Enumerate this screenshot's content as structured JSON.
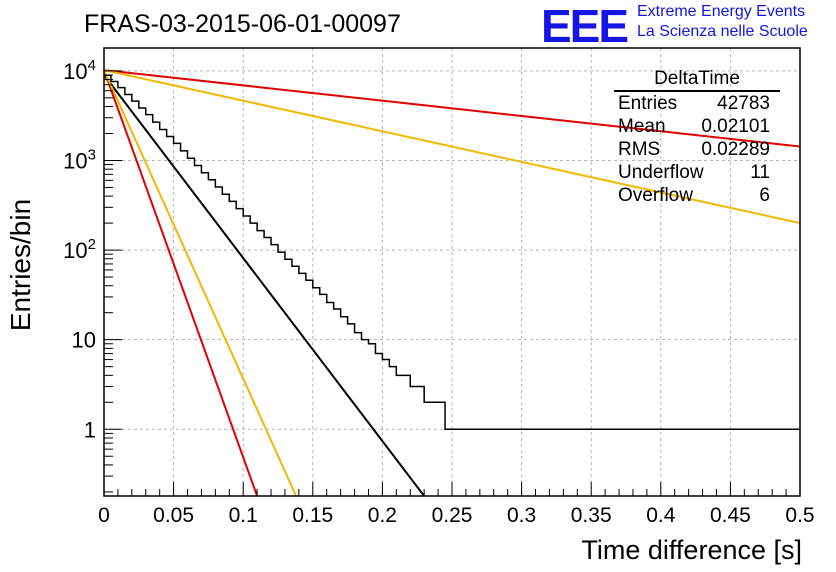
{
  "title": "FRAS-03-2015-06-01-00097",
  "logo": {
    "mark": "EEE",
    "line1": "Extreme Energy Events",
    "line2": "La Scienza nelle Scuole",
    "color": "#1515e6"
  },
  "stats": {
    "name": "DeltaTime",
    "rows": [
      {
        "label": "Entries",
        "value": "42783"
      },
      {
        "label": "Mean",
        "value": "0.02101"
      },
      {
        "label": "RMS",
        "value": "0.02289"
      },
      {
        "label": "Underflow",
        "value": "11"
      },
      {
        "label": "Overflow",
        "value": "6"
      }
    ]
  },
  "chart_data": {
    "type": "line",
    "title": "FRAS-03-2015-06-01-00097",
    "xlabel": "Time difference [s]",
    "ylabel": "Entries/bin",
    "xlim": [
      0,
      0.5
    ],
    "ylim": [
      0.18,
      18000
    ],
    "yscale": "log",
    "grid": true,
    "legend": "top-right",
    "x_ticks": [
      "0",
      "0.05",
      "0.1",
      "0.15",
      "0.2",
      "0.25",
      "0.3",
      "0.35",
      "0.4",
      "0.45",
      "0.5"
    ],
    "x_tick_values": [
      0,
      0.05,
      0.1,
      0.15,
      0.2,
      0.25,
      0.3,
      0.35,
      0.4,
      0.45,
      0.5
    ],
    "y_tick_values": [
      1,
      10,
      100,
      1000,
      10000
    ],
    "histogram": {
      "bin_width": 0.005,
      "color": "#000000",
      "values": [
        8950,
        7600,
        6500,
        5450,
        4600,
        3850,
        3250,
        2680,
        2220,
        1850,
        1550,
        1280,
        1060,
        880,
        730,
        610,
        505,
        420,
        350,
        290,
        240,
        200,
        165,
        138,
        115,
        95,
        79,
        66,
        55,
        46,
        38,
        32,
        26,
        22,
        18,
        15,
        12,
        10,
        9,
        7,
        6,
        5,
        4,
        4,
        3,
        3,
        2,
        2,
        2,
        1,
        1,
        1,
        1,
        1,
        1,
        1,
        1,
        1,
        1,
        1,
        1,
        1,
        1,
        1,
        1,
        1,
        1,
        1,
        1,
        1,
        1,
        1,
        1,
        1,
        1,
        1,
        1,
        1,
        1,
        1,
        1,
        1,
        1,
        1,
        1,
        1,
        1,
        1,
        1,
        1,
        1,
        1,
        1,
        1,
        1,
        1,
        1,
        1,
        1,
        1
      ]
    },
    "series": [
      {
        "x": [
          0,
          0.23
        ],
        "y": [
          9000,
          0.15
        ],
        "color": "#000000"
      },
      {
        "x": [
          0,
          0.5
        ],
        "y": [
          10200,
          1430
        ],
        "color": "#e00000"
      },
      {
        "x": [
          0,
          0.5
        ],
        "y": [
          10200,
          200
        ],
        "color": "#f2b800"
      },
      {
        "x": [
          0,
          0.11
        ],
        "y": [
          10200,
          0.18
        ],
        "color": "#e00000"
      },
      {
        "x": [
          0,
          0.138
        ],
        "y": [
          10200,
          0.18
        ],
        "color": "#f2b800"
      }
    ]
  }
}
